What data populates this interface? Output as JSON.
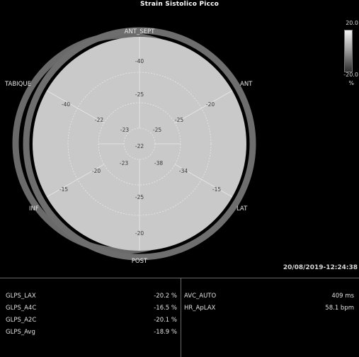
{
  "title": "Strain Sistolico Picco",
  "scale": {
    "top": "20.0",
    "bottom": "-20.0",
    "unit": "%"
  },
  "walls": {
    "ant_sept": "ANT_SEPT",
    "ant": "ANT",
    "lat": "LAT",
    "post": "POST",
    "inf": "INF",
    "septum": "TABIQUE"
  },
  "segments": {
    "basal": [
      "-40",
      "-20",
      "-15",
      "-20",
      "-15",
      "-40"
    ],
    "mid": [
      "-25",
      "-25",
      "-34",
      "-25",
      "-20",
      "-22"
    ],
    "apical": [
      "-23",
      "-25",
      "-38",
      "-23"
    ],
    "apex": "-22"
  },
  "timestamp": "20/08/2019-12:24:38",
  "left_table": [
    {
      "label": "GLPS_LAX",
      "value": "-20.2 %"
    },
    {
      "label": "GLPS_A4C",
      "value": "-16.5 %"
    },
    {
      "label": "GLPS_A2C",
      "value": "-20.1 %"
    },
    {
      "label": "GLPS_Avg",
      "value": "-18.9 %"
    }
  ],
  "right_table": [
    {
      "label": "AVC_AUTO",
      "value": "409 ms"
    },
    {
      "label": "HR_ApLAX",
      "value": "58.1 bpm"
    }
  ],
  "colors": {
    "background": "#000000",
    "bullseye_fill": "#c9c9c9",
    "ring": "#6e6e6e",
    "line": "#e9e9e9"
  }
}
